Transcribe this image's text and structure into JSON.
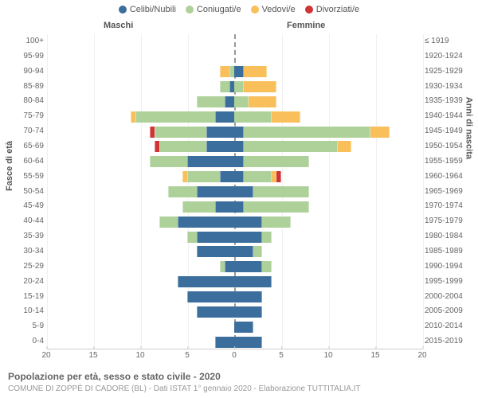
{
  "colors": {
    "celibi": "#3b6e9c",
    "coniugati": "#aed099",
    "vedovi": "#f9bf5a",
    "divorziati": "#cf3437",
    "grid": "#f0f0f0",
    "axis": "#cccccc",
    "text": "#666666",
    "bg": "#ffffff"
  },
  "legend": [
    {
      "label": "Celibi/Nubili",
      "color_key": "celibi"
    },
    {
      "label": "Coniugati/e",
      "color_key": "coniugati"
    },
    {
      "label": "Vedovi/e",
      "color_key": "vedovi"
    },
    {
      "label": "Divorziati/e",
      "color_key": "divorziati"
    }
  ],
  "header_left": "Maschi",
  "header_right": "Femmine",
  "y_left_title": "Fasce di età",
  "y_right_title": "Anni di nascita",
  "x_max": 20,
  "x_ticks_left": [
    20,
    15,
    10,
    5
  ],
  "x_ticks_right": [
    5,
    10,
    15,
    20
  ],
  "x_zero": "0",
  "footer_title": "Popolazione per età, sesso e stato civile - 2020",
  "footer_sub": "COMUNE DI ZOPPÈ DI CADORE (BL) - Dati ISTAT 1° gennaio 2020 - Elaborazione TUTTITALIA.IT",
  "chart_type": "population-pyramid",
  "rows": [
    {
      "age": "100+",
      "birth": "≤ 1919",
      "m": {
        "cel": 0,
        "con": 0,
        "ved": 0,
        "div": 0
      },
      "f": {
        "cel": 0,
        "con": 0,
        "ved": 0,
        "div": 0
      }
    },
    {
      "age": "95-99",
      "birth": "1920-1924",
      "m": {
        "cel": 0,
        "con": 0,
        "ved": 0,
        "div": 0
      },
      "f": {
        "cel": 0,
        "con": 0,
        "ved": 0,
        "div": 0
      }
    },
    {
      "age": "90-94",
      "birth": "1925-1929",
      "m": {
        "cel": 0,
        "con": 0.5,
        "ved": 1,
        "div": 0
      },
      "f": {
        "cel": 1,
        "con": 0,
        "ved": 2.5,
        "div": 0
      }
    },
    {
      "age": "85-89",
      "birth": "1930-1934",
      "m": {
        "cel": 0.5,
        "con": 1,
        "ved": 0,
        "div": 0
      },
      "f": {
        "cel": 0,
        "con": 1,
        "ved": 3.5,
        "div": 0
      }
    },
    {
      "age": "80-84",
      "birth": "1935-1939",
      "m": {
        "cel": 1,
        "con": 3,
        "ved": 0,
        "div": 0
      },
      "f": {
        "cel": 0,
        "con": 1.5,
        "ved": 3,
        "div": 0
      }
    },
    {
      "age": "75-79",
      "birth": "1940-1944",
      "m": {
        "cel": 2,
        "con": 8.5,
        "ved": 0.5,
        "div": 0
      },
      "f": {
        "cel": 0,
        "con": 4,
        "ved": 3,
        "div": 0
      }
    },
    {
      "age": "70-74",
      "birth": "1945-1949",
      "m": {
        "cel": 3,
        "con": 5.5,
        "ved": 0,
        "div": 0.5
      },
      "f": {
        "cel": 1,
        "con": 13.5,
        "ved": 2,
        "div": 0
      }
    },
    {
      "age": "65-69",
      "birth": "1950-1954",
      "m": {
        "cel": 3,
        "con": 5,
        "ved": 0,
        "div": 0.5
      },
      "f": {
        "cel": 1,
        "con": 10,
        "ved": 1.5,
        "div": 0
      }
    },
    {
      "age": "60-64",
      "birth": "1955-1959",
      "m": {
        "cel": 5,
        "con": 4,
        "ved": 0,
        "div": 0
      },
      "f": {
        "cel": 1,
        "con": 7,
        "ved": 0,
        "div": 0
      }
    },
    {
      "age": "55-59",
      "birth": "1960-1964",
      "m": {
        "cel": 1.5,
        "con": 3.5,
        "ved": 0.5,
        "div": 0
      },
      "f": {
        "cel": 1,
        "con": 3,
        "ved": 0.5,
        "div": 0.5
      }
    },
    {
      "age": "50-54",
      "birth": "1965-1969",
      "m": {
        "cel": 4,
        "con": 3,
        "ved": 0,
        "div": 0
      },
      "f": {
        "cel": 2,
        "con": 6,
        "ved": 0,
        "div": 0
      }
    },
    {
      "age": "45-49",
      "birth": "1970-1974",
      "m": {
        "cel": 2,
        "con": 3.5,
        "ved": 0,
        "div": 0
      },
      "f": {
        "cel": 1,
        "con": 7,
        "ved": 0,
        "div": 0
      }
    },
    {
      "age": "40-44",
      "birth": "1975-1979",
      "m": {
        "cel": 6,
        "con": 2,
        "ved": 0,
        "div": 0
      },
      "f": {
        "cel": 3,
        "con": 3,
        "ved": 0,
        "div": 0
      }
    },
    {
      "age": "35-39",
      "birth": "1980-1984",
      "m": {
        "cel": 4,
        "con": 1,
        "ved": 0,
        "div": 0
      },
      "f": {
        "cel": 3,
        "con": 1,
        "ved": 0,
        "div": 0
      }
    },
    {
      "age": "30-34",
      "birth": "1985-1989",
      "m": {
        "cel": 4,
        "con": 0,
        "ved": 0,
        "div": 0
      },
      "f": {
        "cel": 2,
        "con": 1,
        "ved": 0,
        "div": 0
      }
    },
    {
      "age": "25-29",
      "birth": "1990-1994",
      "m": {
        "cel": 1,
        "con": 0.5,
        "ved": 0,
        "div": 0
      },
      "f": {
        "cel": 3,
        "con": 1,
        "ved": 0,
        "div": 0
      }
    },
    {
      "age": "20-24",
      "birth": "1995-1999",
      "m": {
        "cel": 6,
        "con": 0,
        "ved": 0,
        "div": 0
      },
      "f": {
        "cel": 4,
        "con": 0,
        "ved": 0,
        "div": 0
      }
    },
    {
      "age": "15-19",
      "birth": "2000-2004",
      "m": {
        "cel": 5,
        "con": 0,
        "ved": 0,
        "div": 0
      },
      "f": {
        "cel": 3,
        "con": 0,
        "ved": 0,
        "div": 0
      }
    },
    {
      "age": "10-14",
      "birth": "2005-2009",
      "m": {
        "cel": 4,
        "con": 0,
        "ved": 0,
        "div": 0
      },
      "f": {
        "cel": 3,
        "con": 0,
        "ved": 0,
        "div": 0
      }
    },
    {
      "age": "5-9",
      "birth": "2010-2014",
      "m": {
        "cel": 0,
        "con": 0,
        "ved": 0,
        "div": 0
      },
      "f": {
        "cel": 2,
        "con": 0,
        "ved": 0,
        "div": 0
      }
    },
    {
      "age": "0-4",
      "birth": "2015-2019",
      "m": {
        "cel": 2,
        "con": 0,
        "ved": 0,
        "div": 0
      },
      "f": {
        "cel": 3,
        "con": 0,
        "ved": 0,
        "div": 0
      }
    }
  ]
}
